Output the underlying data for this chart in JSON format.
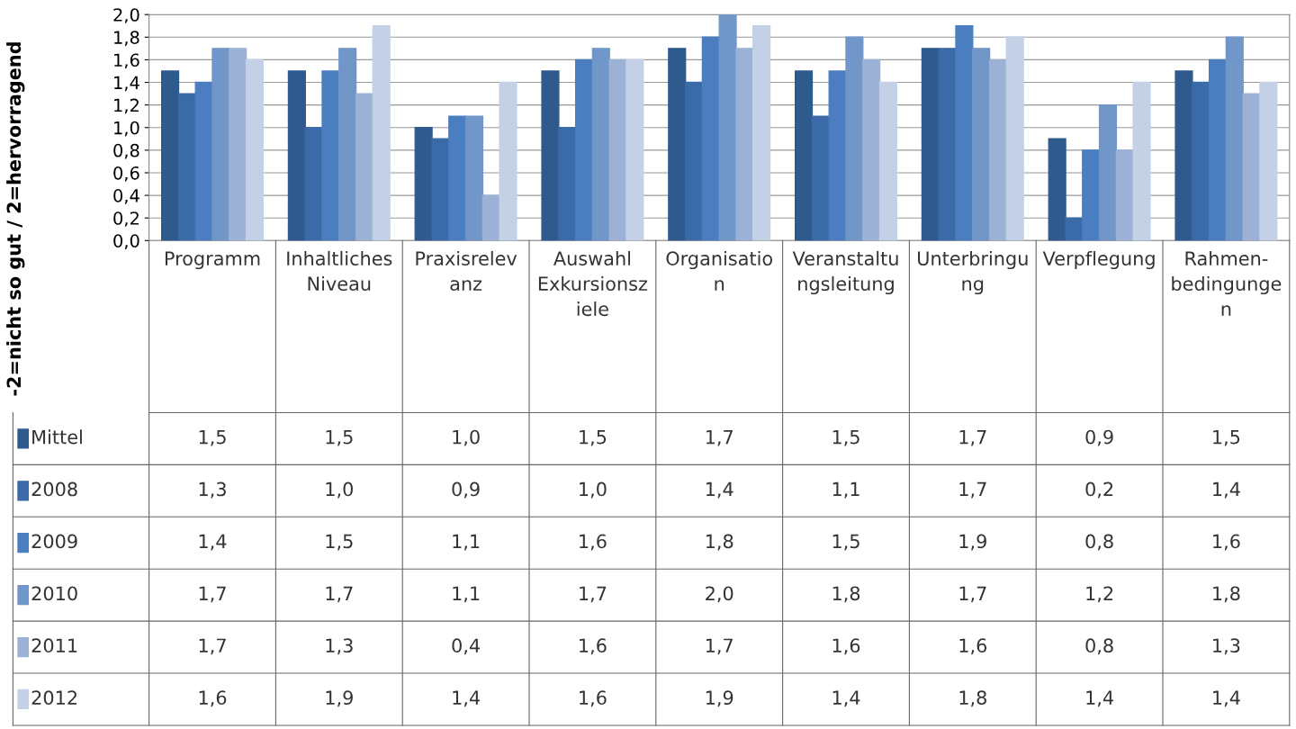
{
  "chart_data": {
    "type": "bar",
    "ylabel": "-2=nicht so gut / 2=hervorragend",
    "categories": [
      "Programm",
      "Inhaltliches Niveau",
      "Praxisrelevanz",
      "Auswahl Exkursionsziele",
      "Organisation",
      "Veranstaltungsleitung",
      "Unterbringung",
      "Verpflegung",
      "Rahmen-bedingungen"
    ],
    "series": [
      {
        "name": "Mittel",
        "color": "#2e5a8e",
        "values": [
          1.5,
          1.5,
          1.0,
          1.5,
          1.7,
          1.5,
          1.7,
          0.9,
          1.5
        ],
        "value_labels": [
          "1,5",
          "1,5",
          "1,0",
          "1,5",
          "1,7",
          "1,5",
          "1,7",
          "0,9",
          "1,5"
        ]
      },
      {
        "name": "2008",
        "color": "#3a6aa8",
        "values": [
          1.3,
          1.0,
          0.9,
          1.0,
          1.4,
          1.1,
          1.7,
          0.2,
          1.4
        ],
        "value_labels": [
          "1,3",
          "1,0",
          "0,9",
          "1,0",
          "1,4",
          "1,1",
          "1,7",
          "0,2",
          "1,4"
        ]
      },
      {
        "name": "2009",
        "color": "#4a7ec0",
        "values": [
          1.4,
          1.5,
          1.1,
          1.6,
          1.8,
          1.5,
          1.9,
          0.8,
          1.6
        ],
        "value_labels": [
          "1,4",
          "1,5",
          "1,1",
          "1,6",
          "1,8",
          "1,5",
          "1,9",
          "0,8",
          "1,6"
        ]
      },
      {
        "name": "2010",
        "color": "#7196c8",
        "values": [
          1.7,
          1.7,
          1.1,
          1.7,
          2.0,
          1.8,
          1.7,
          1.2,
          1.8
        ],
        "value_labels": [
          "1,7",
          "1,7",
          "1,1",
          "1,7",
          "2,0",
          "1,8",
          "1,7",
          "1,2",
          "1,8"
        ]
      },
      {
        "name": "2011",
        "color": "#9bb2d6",
        "values": [
          1.7,
          1.3,
          0.4,
          1.6,
          1.7,
          1.6,
          1.6,
          0.8,
          1.3
        ],
        "value_labels": [
          "1,7",
          "1,3",
          "0,4",
          "1,6",
          "1,7",
          "1,6",
          "1,6",
          "0,8",
          "1,3"
        ]
      },
      {
        "name": "2012",
        "color": "#c3d0e6",
        "values": [
          1.6,
          1.9,
          1.4,
          1.6,
          1.9,
          1.4,
          1.8,
          1.4,
          1.4
        ],
        "value_labels": [
          "1,6",
          "1,9",
          "1,4",
          "1,6",
          "1,9",
          "1,4",
          "1,8",
          "1,4",
          "1,4"
        ]
      }
    ],
    "ylim": [
      0,
      2
    ],
    "yticks": [
      {
        "value": 0,
        "label": "0,0"
      },
      {
        "value": 0.2,
        "label": "0,2"
      },
      {
        "value": 0.4,
        "label": "0,4"
      },
      {
        "value": 0.6,
        "label": "0,6"
      },
      {
        "value": 0.8,
        "label": "0,8"
      },
      {
        "value": 1.0,
        "label": "1,0"
      },
      {
        "value": 1.2,
        "label": "1,2"
      },
      {
        "value": 1.4,
        "label": "1,4"
      },
      {
        "value": 1.6,
        "label": "1,6"
      },
      {
        "value": 1.8,
        "label": "1,8"
      },
      {
        "value": 2.0,
        "label": "2,0"
      }
    ],
    "grid": "y",
    "legend": "left"
  }
}
